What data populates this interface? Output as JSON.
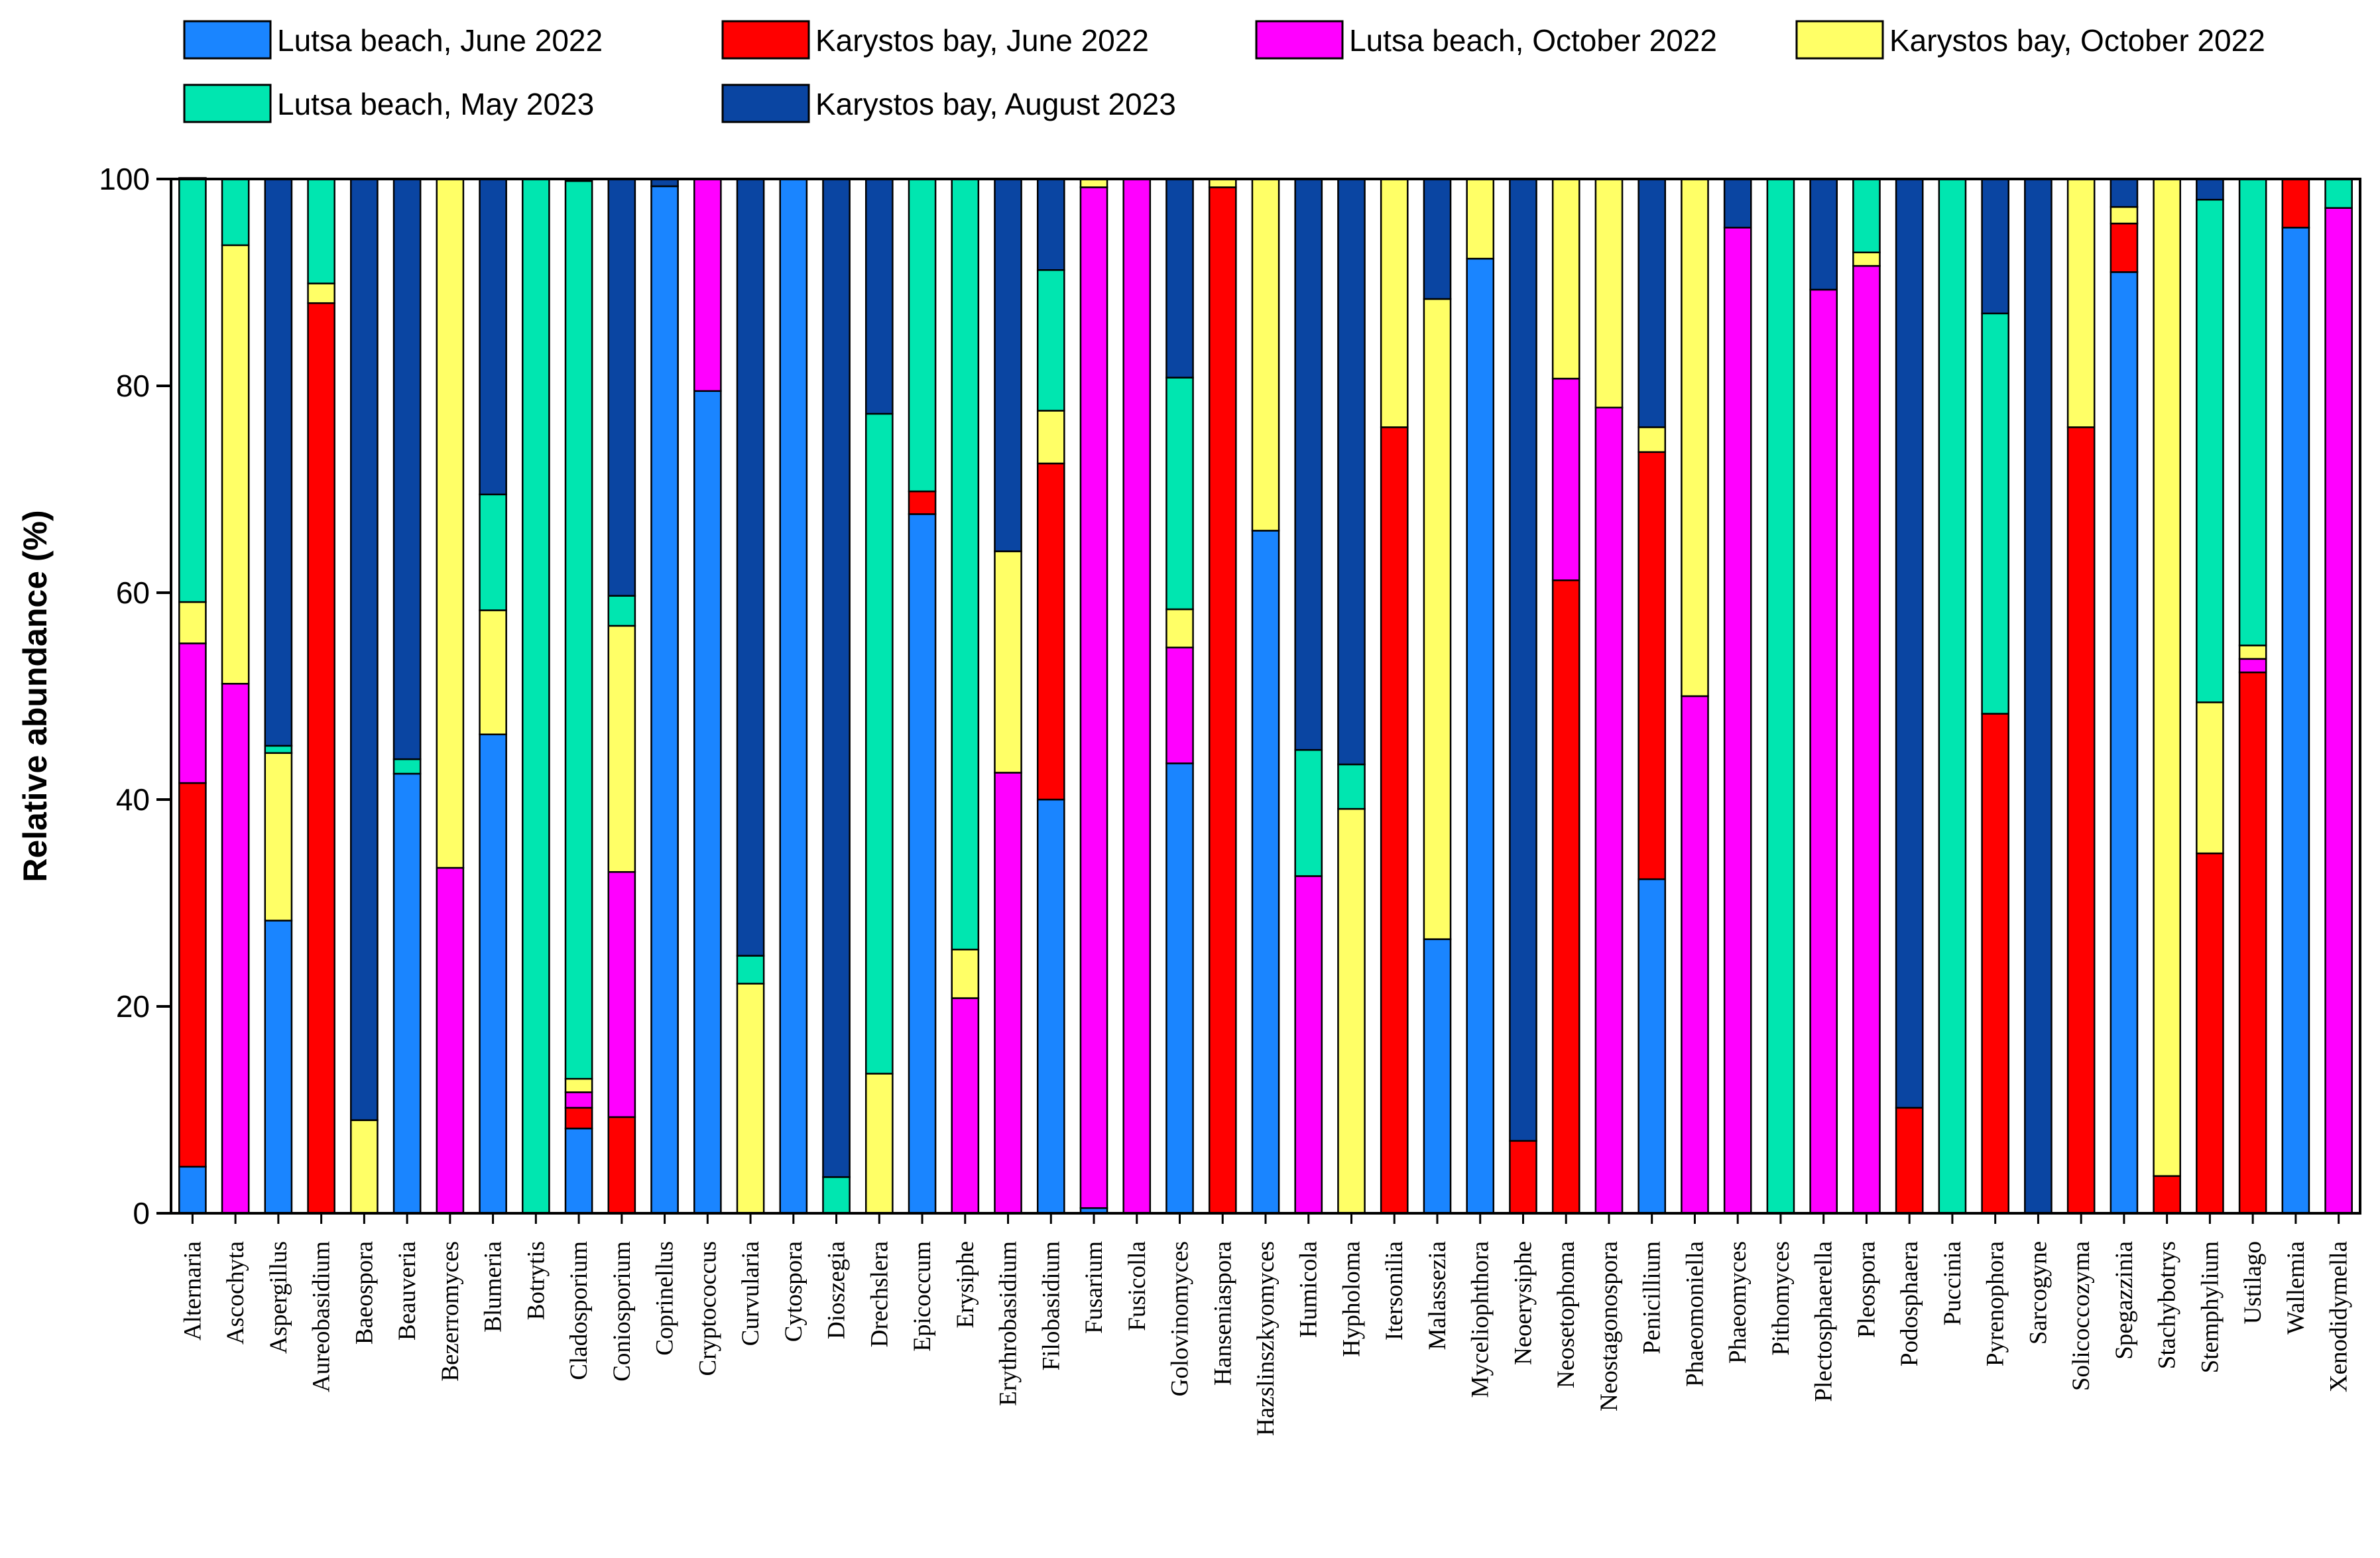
{
  "chart_data": {
    "type": "bar",
    "stacked": true,
    "title": "",
    "xlabel": "",
    "ylabel": "Relative abundance (%)",
    "ylim": [
      0,
      100
    ],
    "yticks": [
      0,
      20,
      40,
      60,
      80,
      100
    ],
    "grid": false,
    "legend_position": "top",
    "categories": [
      "Alternaria",
      "Ascochyta",
      "Aspergillus",
      "Aureobasidium",
      "Baeospora",
      "Beauveria",
      "Bezerromyces",
      "Blumeria",
      "Botrytis",
      "Cladosporium",
      "Coniosporium",
      "Coprinellus",
      "Cryptococcus",
      "Curvularia",
      "Cytospora",
      "Dioszegia",
      "Drechslera",
      "Epicoccum",
      "Erysiphe",
      "Erythrobasidium",
      "Filobasidium",
      "Fusarium",
      "Fusicolla",
      "Golovinomyces",
      "Hanseniaspora",
      "Hazslinszkyomyces",
      "Humicola",
      "Hypholoma",
      "Itersonilia",
      "Malassezia",
      "Myceliophthora",
      "Neoerysiphe",
      "Neosetophoma",
      "Neostagonospora",
      "Penicillium",
      "Phaeomoniella",
      "Phaeomyces",
      "Pithomyces",
      "Plectosphaerella",
      "Pleospora",
      "Podosphaera",
      "Puccinia",
      "Pyrenophora",
      "Sarcogyne",
      "Solicoccozyma",
      "Spegazzinia",
      "Stachybotrys",
      "Stemphylium",
      "Ustilago",
      "Wallemia",
      "Xenodidymella"
    ],
    "series": [
      {
        "name": "Lutsa beach, June 2022",
        "color": "#1a85ff",
        "values": [
          4.5,
          0,
          28.3,
          0,
          0,
          42.5,
          0,
          46.3,
          0,
          8.2,
          0,
          99.3,
          79.5,
          0,
          100,
          0,
          0,
          67.6,
          0,
          0,
          40,
          0.5,
          0,
          43.5,
          0,
          66,
          0,
          0,
          0,
          26.5,
          92.3,
          0,
          0,
          0,
          32.3,
          0,
          0,
          0,
          0,
          0,
          0,
          0,
          0,
          0,
          0,
          91,
          0,
          0,
          0,
          95.3,
          0
        ]
      },
      {
        "name": "Karystos bay, June 2022",
        "color": "#ff0000",
        "values": [
          37.1,
          0,
          0,
          88,
          0,
          0,
          0,
          0,
          0,
          2,
          9.3,
          0,
          0,
          0,
          0,
          0,
          0,
          2.2,
          0,
          0,
          32.5,
          0,
          0,
          0,
          99.2,
          0,
          0,
          0,
          76,
          0,
          0,
          7,
          61.2,
          0,
          41.3,
          0,
          0,
          0,
          0,
          0,
          10.2,
          0,
          48.3,
          0,
          76,
          4.7,
          3.6,
          34.8,
          52.3,
          4.7,
          0
        ]
      },
      {
        "name": "Lutsa beach, October 2022",
        "color": "#ff00ff",
        "values": [
          13.5,
          51.2,
          0,
          0,
          0,
          0,
          33.4,
          0,
          0,
          1.5,
          23.7,
          0,
          20.5,
          0,
          0,
          0,
          0,
          0,
          20.8,
          42.6,
          0,
          98.7,
          100,
          11.2,
          0,
          0,
          32.6,
          0,
          0,
          0,
          0,
          0,
          19.5,
          77.9,
          0,
          50,
          95.3,
          0,
          89.3,
          91.6,
          0,
          0,
          0,
          0,
          0,
          0,
          0,
          0,
          1.3,
          0,
          97.2
        ]
      },
      {
        "name": "Karystos bay, October 2022",
        "color": "#ffff66",
        "values": [
          4,
          42.4,
          16.2,
          1.9,
          9,
          0,
          66.6,
          12,
          0,
          1.3,
          23.8,
          0,
          0,
          22.2,
          0,
          0,
          13.5,
          0,
          4.7,
          21.4,
          5.1,
          0.8,
          0,
          3.7,
          0.8,
          34,
          0,
          39.1,
          24,
          61.9,
          7.7,
          0,
          19.3,
          22.1,
          2.4,
          50,
          0,
          0,
          0,
          1.3,
          0,
          0,
          0,
          0,
          24,
          1.6,
          96.4,
          14.6,
          1.3,
          0,
          0
        ]
      },
      {
        "name": "Lutsa beach, May 2023",
        "color": "#00e6b0",
        "values": [
          41,
          6.4,
          0.7,
          10.1,
          0,
          1.4,
          0,
          11.2,
          100,
          86.8,
          2.9,
          0,
          0,
          2.7,
          0,
          3.5,
          63.8,
          30.2,
          74.5,
          0,
          13.6,
          0,
          0,
          22.4,
          0,
          0,
          12.2,
          4.3,
          0,
          0,
          0,
          0,
          0,
          0,
          0,
          0,
          0,
          100,
          0,
          7.1,
          0,
          100,
          38.7,
          0,
          0,
          0,
          0,
          48.6,
          45.1,
          0,
          2.8
        ]
      },
      {
        "name": "Karystos bay, August 2023",
        "color": "#0a45a2",
        "values": [
          0,
          0,
          54.8,
          0,
          91,
          56.1,
          0,
          30.5,
          0,
          0,
          40.3,
          0.7,
          0,
          75.1,
          0,
          96.5,
          22.7,
          0,
          0,
          36,
          8.8,
          0,
          0,
          19.2,
          0,
          0,
          55.2,
          56.6,
          0,
          11.6,
          0,
          93,
          0,
          0,
          24,
          0,
          4.7,
          0,
          10.7,
          0,
          89.8,
          0,
          13,
          100,
          0,
          2.7,
          0,
          2,
          0,
          0,
          0
        ]
      }
    ]
  }
}
